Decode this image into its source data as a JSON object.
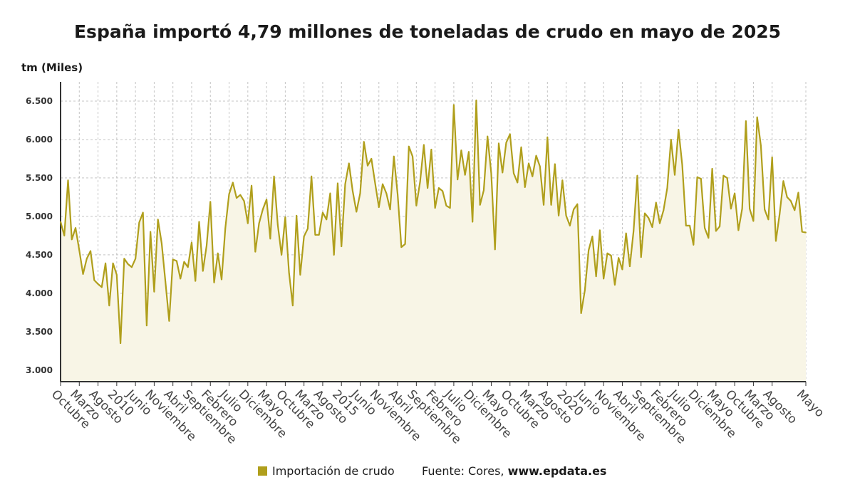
{
  "chart_data": {
    "type": "area",
    "title": "España importó 4,79 millones de toneladas de crudo en mayo de 2025",
    "ylabel": "tm (Miles)",
    "xlabel": "",
    "ylim": [
      2850,
      6750
    ],
    "y_ticks": [
      3000,
      3500,
      4000,
      4500,
      5000,
      5500,
      6000,
      6500
    ],
    "y_tick_labels": [
      "3.000",
      "3.500",
      "4.000",
      "4.500",
      "5.000",
      "5.500",
      "6.000",
      "6.500"
    ],
    "grid": true,
    "x_range": [
      "2008-10",
      "2025-05"
    ],
    "x_tick_labels": [
      {
        "x": "2008-10",
        "label": "Octubre"
      },
      {
        "x": "2009-03",
        "label": "Marzo"
      },
      {
        "x": "2009-08",
        "label": "Agosto"
      },
      {
        "x": "2010-01",
        "label": "2010"
      },
      {
        "x": "2010-06",
        "label": "Junio"
      },
      {
        "x": "2010-11",
        "label": "Noviembre"
      },
      {
        "x": "2011-04",
        "label": "Abril"
      },
      {
        "x": "2011-09",
        "label": "Septiembre"
      },
      {
        "x": "2012-02",
        "label": "Febrero"
      },
      {
        "x": "2012-07",
        "label": "Julio"
      },
      {
        "x": "2012-12",
        "label": "Diciembre"
      },
      {
        "x": "2013-05",
        "label": "Mayo"
      },
      {
        "x": "2013-10",
        "label": "Octubre"
      },
      {
        "x": "2014-03",
        "label": "Marzo"
      },
      {
        "x": "2014-08",
        "label": "Agosto"
      },
      {
        "x": "2015-01",
        "label": "2015"
      },
      {
        "x": "2015-06",
        "label": "Junio"
      },
      {
        "x": "2015-11",
        "label": "Noviembre"
      },
      {
        "x": "2016-04",
        "label": "Abril"
      },
      {
        "x": "2016-09",
        "label": "Septiembre"
      },
      {
        "x": "2017-02",
        "label": "Febrero"
      },
      {
        "x": "2017-07",
        "label": "Julio"
      },
      {
        "x": "2017-12",
        "label": "Diciembre"
      },
      {
        "x": "2018-05",
        "label": "Mayo"
      },
      {
        "x": "2018-10",
        "label": "Octubre"
      },
      {
        "x": "2019-03",
        "label": "Marzo"
      },
      {
        "x": "2019-08",
        "label": "Agosto"
      },
      {
        "x": "2020-01",
        "label": "2020"
      },
      {
        "x": "2020-06",
        "label": "Junio"
      },
      {
        "x": "2020-11",
        "label": "Noviembre"
      },
      {
        "x": "2021-04",
        "label": "Abril"
      },
      {
        "x": "2021-09",
        "label": "Septiembre"
      },
      {
        "x": "2022-02",
        "label": "Febrero"
      },
      {
        "x": "2022-07",
        "label": "Julio"
      },
      {
        "x": "2022-12",
        "label": "Diciembre"
      },
      {
        "x": "2023-05",
        "label": "Mayo"
      },
      {
        "x": "2023-10",
        "label": "Octubre"
      },
      {
        "x": "2024-03",
        "label": "Marzo"
      },
      {
        "x": "2024-08",
        "label": "Agosto"
      },
      {
        "x": "2025-05",
        "label": "Mayo"
      }
    ],
    "series": [
      {
        "name": "Importación de crudo",
        "color": "#b09f1c",
        "fill": "#f8f5e6",
        "x": [
          "2008-10",
          "2008-11",
          "2008-12",
          "2009-01",
          "2009-02",
          "2009-03",
          "2009-04",
          "2009-05",
          "2009-06",
          "2009-07",
          "2009-08",
          "2009-09",
          "2009-10",
          "2009-11",
          "2009-12",
          "2010-01",
          "2010-02",
          "2010-03",
          "2010-04",
          "2010-05",
          "2010-06",
          "2010-07",
          "2010-08",
          "2010-09",
          "2010-10",
          "2010-11",
          "2010-12",
          "2011-01",
          "2011-02",
          "2011-03",
          "2011-04",
          "2011-05",
          "2011-06",
          "2011-07",
          "2011-08",
          "2011-09",
          "2011-10",
          "2011-11",
          "2011-12",
          "2012-01",
          "2012-02",
          "2012-03",
          "2012-04",
          "2012-05",
          "2012-06",
          "2012-07",
          "2012-08",
          "2012-09",
          "2012-10",
          "2012-11",
          "2012-12",
          "2013-01",
          "2013-02",
          "2013-03",
          "2013-04",
          "2013-05",
          "2013-06",
          "2013-07",
          "2013-08",
          "2013-09",
          "2013-10",
          "2013-11",
          "2013-12",
          "2014-01",
          "2014-02",
          "2014-03",
          "2014-04",
          "2014-05",
          "2014-06",
          "2014-07",
          "2014-08",
          "2014-09",
          "2014-10",
          "2014-11",
          "2014-12",
          "2015-01",
          "2015-02",
          "2015-03",
          "2015-04",
          "2015-05",
          "2015-06",
          "2015-07",
          "2015-08",
          "2015-09",
          "2015-10",
          "2015-11",
          "2015-12",
          "2016-01",
          "2016-02",
          "2016-03",
          "2016-04",
          "2016-05",
          "2016-06",
          "2016-07",
          "2016-08",
          "2016-09",
          "2016-10",
          "2016-11",
          "2016-12",
          "2017-01",
          "2017-02",
          "2017-03",
          "2017-04",
          "2017-05",
          "2017-06",
          "2017-07",
          "2017-08",
          "2017-09",
          "2017-10",
          "2017-11",
          "2017-12",
          "2018-01",
          "2018-02",
          "2018-03",
          "2018-04",
          "2018-05",
          "2018-06",
          "2018-07",
          "2018-08",
          "2018-09",
          "2018-10",
          "2018-11",
          "2018-12",
          "2019-01",
          "2019-02",
          "2019-03",
          "2019-04",
          "2019-05",
          "2019-06",
          "2019-07",
          "2019-08",
          "2019-09",
          "2019-10",
          "2019-11",
          "2019-12",
          "2020-01",
          "2020-02",
          "2020-03",
          "2020-04",
          "2020-05",
          "2020-06",
          "2020-07",
          "2020-08",
          "2020-09",
          "2020-10",
          "2020-11",
          "2020-12",
          "2021-01",
          "2021-02",
          "2021-03",
          "2021-04",
          "2021-05",
          "2021-06",
          "2021-07",
          "2021-08",
          "2021-09",
          "2021-10",
          "2021-11",
          "2021-12",
          "2022-01",
          "2022-02",
          "2022-03",
          "2022-04",
          "2022-05",
          "2022-06",
          "2022-07",
          "2022-08",
          "2022-09",
          "2022-10",
          "2022-11",
          "2022-12",
          "2023-01",
          "2023-02",
          "2023-03",
          "2023-04",
          "2023-05",
          "2023-06",
          "2023-07",
          "2023-08",
          "2023-09",
          "2023-10",
          "2023-11",
          "2023-12",
          "2024-01",
          "2024-02",
          "2024-03",
          "2024-04",
          "2024-05",
          "2024-06",
          "2024-07",
          "2024-08",
          "2024-09",
          "2024-10",
          "2024-11",
          "2024-12",
          "2025-01",
          "2025-02",
          "2025-03",
          "2025-04",
          "2025-05"
        ],
        "values": [
          4930,
          4750,
          5470,
          4700,
          4850,
          4560,
          4250,
          4450,
          4550,
          4170,
          4120,
          4080,
          4390,
          3840,
          4390,
          4240,
          3350,
          4450,
          4380,
          4340,
          4450,
          4920,
          5050,
          3580,
          4800,
          4020,
          4960,
          4650,
          4150,
          3640,
          4440,
          4420,
          4190,
          4410,
          4340,
          4660,
          4160,
          4930,
          4290,
          4620,
          5190,
          4140,
          4520,
          4180,
          4850,
          5290,
          5440,
          5240,
          5280,
          5200,
          4910,
          5400,
          4540,
          4910,
          5090,
          5220,
          4710,
          5520,
          4890,
          4500,
          4990,
          4270,
          3840,
          5010,
          4240,
          4740,
          4840,
          5520,
          4760,
          4760,
          5050,
          4960,
          5300,
          4500,
          5430,
          4610,
          5420,
          5690,
          5330,
          5060,
          5300,
          5970,
          5660,
          5750,
          5430,
          5120,
          5420,
          5300,
          5090,
          5780,
          5290,
          4600,
          4640,
          5910,
          5780,
          5140,
          5450,
          5930,
          5370,
          5870,
          5110,
          5370,
          5330,
          5140,
          5110,
          6450,
          5480,
          5860,
          5540,
          5840,
          4930,
          6510,
          5150,
          5340,
          6040,
          5560,
          4570,
          5950,
          5570,
          5960,
          6070,
          5560,
          5440,
          5900,
          5380,
          5690,
          5520,
          5790,
          5650,
          5150,
          6030,
          5150,
          5680,
          5010,
          5470,
          5010,
          4880,
          5090,
          5160,
          3740,
          4040,
          4560,
          4740,
          4220,
          4820,
          4190,
          4520,
          4490,
          4110,
          4460,
          4310,
          4780,
          4350,
          4810,
          5530,
          4470,
          5040,
          4980,
          4860,
          5180,
          4910,
          5080,
          5370,
          6000,
          5540,
          6130,
          5670,
          4880,
          4880,
          4630,
          5510,
          5490,
          4850,
          4720,
          5620,
          4810,
          4870,
          5530,
          5500,
          5100,
          5300,
          4820,
          5100,
          6240,
          5100,
          4940,
          6290,
          5920,
          5090,
          4960,
          5770,
          4680,
          5030,
          5460,
          5250,
          5200,
          5080,
          5310,
          4800,
          4790
        ]
      }
    ],
    "legend_position": "bottom-center",
    "source_prefix": "Fuente: Cores, ",
    "source_site": "www.epdata.es"
  }
}
